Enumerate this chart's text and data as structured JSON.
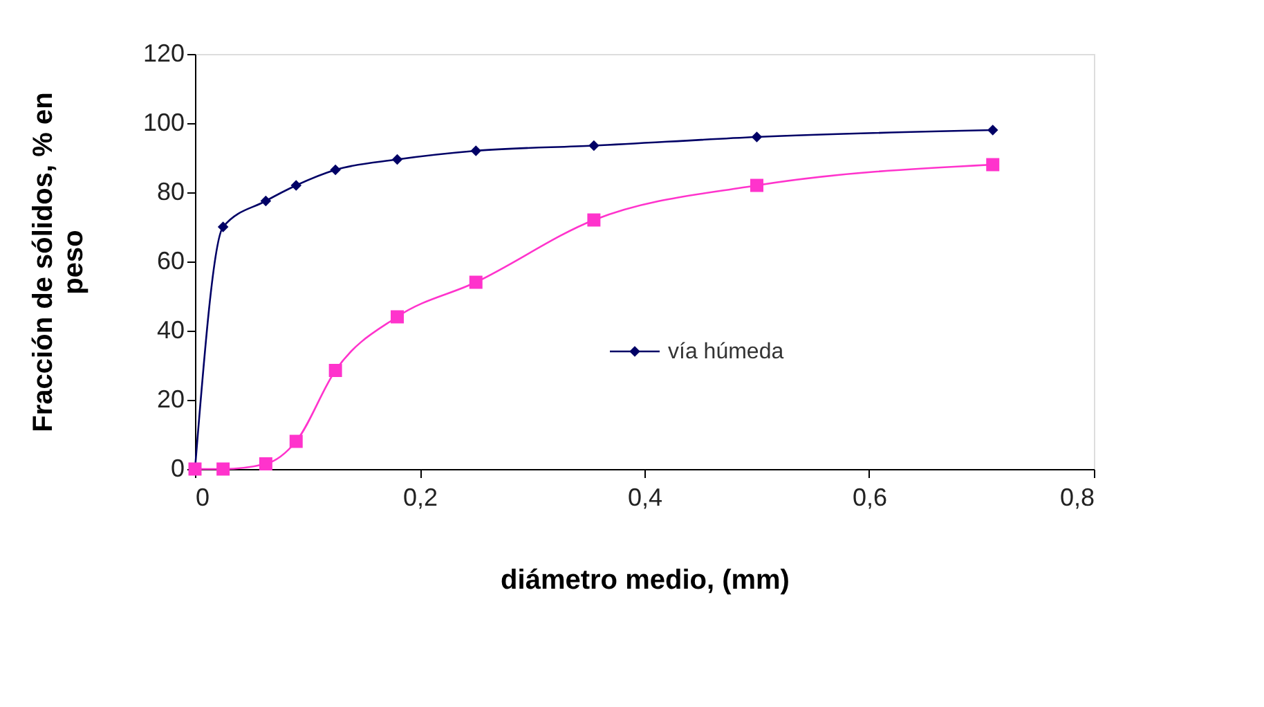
{
  "chart_data": {
    "type": "line",
    "xlabel": "diámetro medio, (mm)",
    "ylabel": "Fracción de sólidos, % en peso",
    "xlim": [
      0,
      0.8
    ],
    "xticks": [
      0,
      {
        "value": 0.2,
        "label": "0,2"
      },
      {
        "value": 0.4,
        "label": "0,4"
      },
      {
        "value": 0.6,
        "label": "0,6"
      },
      {
        "value": 0.8,
        "label": "0,8"
      }
    ],
    "ylim": [
      0,
      120
    ],
    "yticks": [
      0,
      20,
      40,
      60,
      80,
      100,
      120
    ],
    "grid": false,
    "legend": "bottom",
    "line_style": "solid",
    "series": [
      {
        "name": "vía húmeda",
        "color": "#000066",
        "marker": "diamond",
        "x": [
          0,
          0.025,
          0.063,
          0.09,
          0.125,
          0.18,
          0.25,
          0.355,
          0.5,
          0.71
        ],
        "values": [
          0,
          70,
          77.5,
          82,
          86.5,
          89.5,
          92,
          93.5,
          96,
          98
        ]
      },
      {
        "color": "#ff33cc",
        "marker": "square",
        "x": [
          0,
          0.025,
          0.063,
          0.09,
          0.125,
          0.18,
          0.25,
          0.355,
          0.5,
          0.71
        ],
        "values": [
          0,
          0,
          1.5,
          8,
          28.5,
          44,
          54,
          72,
          82,
          88
        ]
      }
    ]
  }
}
